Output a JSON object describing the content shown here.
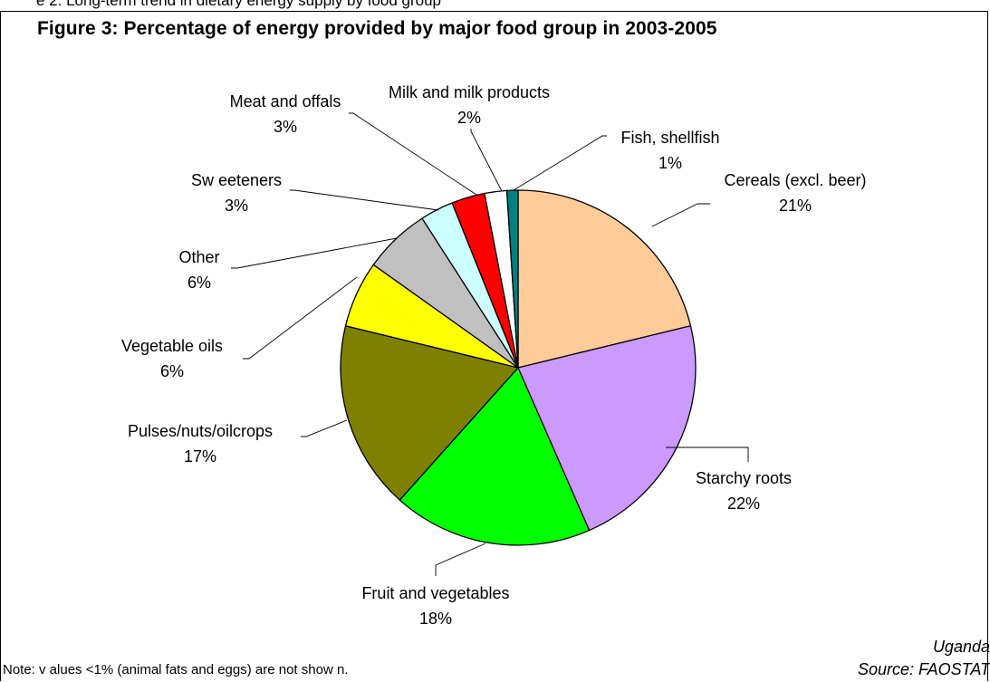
{
  "header_cut_text": "e 2: Long-term trend in dietary energy supply by food group",
  "title": "Figure 3: Percentage of energy provided by major food group in 2003-2005",
  "note": "Note: v alues  <1% (animal fats and eggs) are not show n.",
  "country": "Uganda",
  "source": "Source: FAOSTAT",
  "chart_data": {
    "type": "pie",
    "title": "Figure 3: Percentage of energy provided by major food group in 2003-2005",
    "start_angle_deg": 0,
    "direction": "clockwise",
    "slices": [
      {
        "label": "Cereals (excl. beer)",
        "value": 21,
        "value_label": "21%",
        "color": "#FFCC99"
      },
      {
        "label": "Starchy roots",
        "value": 22,
        "value_label": "22%",
        "color": "#CC99FF"
      },
      {
        "label": "Fruit and vegetables",
        "value": 18,
        "value_label": "18%",
        "color": "#00FF00"
      },
      {
        "label": "Pulses/nuts/oilcrops",
        "value": 17,
        "value_label": "17%",
        "color": "#808000"
      },
      {
        "label": "Vegetable oils",
        "value": 6,
        "value_label": "6%",
        "color": "#FFFF00"
      },
      {
        "label": "Other",
        "value": 6,
        "value_label": "6%",
        "color": "#C0C0C0"
      },
      {
        "label": "Sw eeteners",
        "value": 3,
        "value_label": "3%",
        "color": "#CCFFFF"
      },
      {
        "label": "Meat and offals",
        "value": 3,
        "value_label": "3%",
        "color": "#FF0000"
      },
      {
        "label": "Milk and milk products",
        "value": 2,
        "value_label": "2%",
        "color": "#FFFFFF"
      },
      {
        "label": "Fish, shellfish",
        "value": 1,
        "value_label": "1%",
        "color": "#008080"
      }
    ]
  }
}
